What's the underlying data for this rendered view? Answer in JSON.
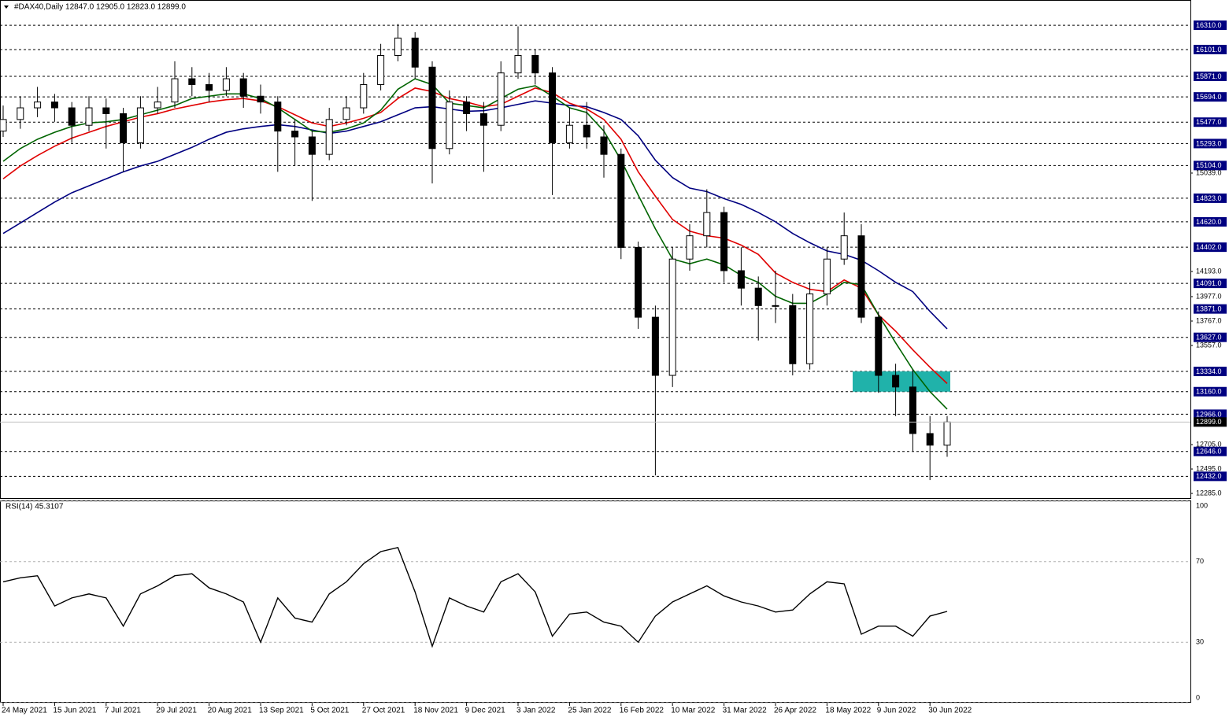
{
  "chart_data": [
    {
      "type": "candlestick",
      "title": "#DAX40,Daily  12847.0 12905.0 12823.0 12899.0",
      "categories": [
        "24 May 2021",
        null,
        null,
        "15 Jun 2021",
        null,
        null,
        "7 Jul 2021",
        null,
        null,
        "29 Jul 2021",
        null,
        null,
        "20 Aug 2021",
        null,
        null,
        "13 Sep 2021",
        null,
        null,
        "5 Oct 2021",
        null,
        null,
        "27 Oct 2021",
        null,
        null,
        "18 Nov 2021",
        null,
        null,
        "9 Dec 2021",
        null,
        null,
        "3 Jan 2022",
        null,
        null,
        "25 Jan 2022",
        null,
        null,
        "16 Feb 2022",
        null,
        null,
        "10 Mar 2022",
        null,
        null,
        "31 Mar 2022",
        null,
        null,
        "26 Apr 2022",
        null,
        null,
        "18 May 2022",
        null,
        null,
        "9 Jun 2022",
        null,
        null,
        "30 Jun 2022",
        null
      ],
      "open": [
        15400,
        15500,
        15600,
        15650,
        15600,
        15450,
        15600,
        15550,
        15300,
        15600,
        15650,
        15850,
        15800,
        15750,
        15850,
        15700,
        15650,
        15400,
        15350,
        15200,
        15500,
        15600,
        15800,
        16050,
        16200,
        15950,
        15250,
        15650,
        15550,
        15450,
        15900,
        16050,
        15900,
        15300,
        15450,
        15350,
        15200,
        14400,
        13800,
        13300,
        14300,
        14500,
        14700,
        14200,
        14050,
        13900,
        13900,
        13400,
        14000,
        14300,
        14500,
        13800,
        13300,
        13200,
        12800,
        12700
      ],
      "high": [
        15620,
        15700,
        15780,
        15720,
        15650,
        15700,
        15680,
        15600,
        15700,
        15780,
        16000,
        15950,
        15900,
        15950,
        15900,
        15800,
        15700,
        15500,
        15400,
        15600,
        15700,
        15900,
        16150,
        16320,
        16250,
        16000,
        15750,
        15700,
        15650,
        16000,
        16300,
        16100,
        15950,
        15600,
        15650,
        15450,
        15250,
        14450,
        13900,
        14400,
        14600,
        14900,
        14750,
        14400,
        14150,
        14200,
        14000,
        14100,
        14400,
        14700,
        14600,
        13850,
        13400,
        13350,
        12950,
        12950
      ],
      "low": [
        15350,
        15420,
        15520,
        15480,
        15300,
        15400,
        15250,
        15050,
        15250,
        15550,
        15600,
        15700,
        15650,
        15700,
        15600,
        15550,
        15050,
        15100,
        14800,
        15150,
        15450,
        15550,
        15750,
        16000,
        15850,
        14950,
        15200,
        15400,
        15050,
        15400,
        15850,
        15800,
        14850,
        15250,
        15250,
        15000,
        14300,
        13700,
        12440,
        13200,
        14200,
        14400,
        14100,
        13900,
        13600,
        13750,
        13300,
        13350,
        13900,
        14250,
        13750,
        13150,
        12950,
        12650,
        12400,
        12600
      ],
      "close": [
        15500,
        15600,
        15650,
        15600,
        15450,
        15600,
        15550,
        15300,
        15600,
        15650,
        15850,
        15800,
        15750,
        15850,
        15700,
        15650,
        15400,
        15350,
        15200,
        15500,
        15600,
        15800,
        16050,
        16200,
        15950,
        15250,
        15650,
        15550,
        15450,
        15900,
        16050,
        15900,
        15300,
        15450,
        15350,
        15200,
        14400,
        13800,
        13300,
        14300,
        14500,
        14700,
        14200,
        14050,
        13900,
        13900,
        13400,
        14000,
        14300,
        14500,
        13800,
        13300,
        13200,
        12800,
        12700,
        12899
      ],
      "series": [
        {
          "color": "#000080",
          "values": [
            14520,
            14610,
            14700,
            14790,
            14870,
            14930,
            14990,
            15050,
            15100,
            15140,
            15200,
            15260,
            15330,
            15390,
            15420,
            15440,
            15455,
            15440,
            15410,
            15380,
            15400,
            15440,
            15480,
            15540,
            15600,
            15610,
            15590,
            15570,
            15575,
            15600,
            15630,
            15660,
            15640,
            15620,
            15610,
            15560,
            15500,
            15360,
            15150,
            15000,
            14910,
            14880,
            14820,
            14770,
            14700,
            14620,
            14520,
            14440,
            14370,
            14340,
            14290,
            14200,
            14100,
            14020,
            13850,
            13700
          ]
        },
        {
          "color": "#e00000",
          "values": [
            14990,
            15100,
            15190,
            15270,
            15340,
            15390,
            15440,
            15480,
            15520,
            15550,
            15590,
            15620,
            15650,
            15670,
            15680,
            15660,
            15610,
            15540,
            15470,
            15440,
            15470,
            15510,
            15560,
            15680,
            15770,
            15740,
            15680,
            15650,
            15610,
            15630,
            15700,
            15770,
            15730,
            15640,
            15590,
            15500,
            15330,
            15050,
            14840,
            14640,
            14540,
            14500,
            14480,
            14420,
            14340,
            14180,
            14100,
            14040,
            14020,
            14120,
            14050,
            13820,
            13680,
            13520,
            13370,
            13230
          ]
        },
        {
          "color": "#006400",
          "values": [
            15140,
            15250,
            15330,
            15390,
            15440,
            15470,
            15480,
            15500,
            15540,
            15580,
            15620,
            15680,
            15700,
            15720,
            15720,
            15680,
            15600,
            15500,
            15400,
            15390,
            15420,
            15470,
            15580,
            15760,
            15850,
            15800,
            15640,
            15620,
            15600,
            15680,
            15760,
            15790,
            15700,
            15600,
            15560,
            15400,
            15150,
            14850,
            14560,
            14300,
            14260,
            14300,
            14250,
            14160,
            14100,
            13980,
            13920,
            13920,
            14000,
            14100,
            14080,
            13820,
            13580,
            13350,
            13160,
            13010
          ]
        }
      ],
      "ylim": [
        12245,
        16527
      ],
      "yticks": [
        {
          "value": 15039,
          "label": "15039.0"
        },
        {
          "value": 14193,
          "label": "14193.0"
        },
        {
          "value": 13977,
          "label": "13977.0"
        },
        {
          "value": 13767,
          "label": "13767.0"
        },
        {
          "value": 13557,
          "label": "13557.0"
        },
        {
          "value": 12705,
          "label": "12705.0"
        },
        {
          "value": 12495,
          "label": "12495.0"
        },
        {
          "value": 12285,
          "label": "12285.0"
        }
      ],
      "levels": [
        {
          "value": 16310,
          "label": "16310.0"
        },
        {
          "value": 16101,
          "label": "16101.0"
        },
        {
          "value": 15871,
          "label": "15871.0"
        },
        {
          "value": 15694,
          "label": "15694.0"
        },
        {
          "value": 15477,
          "label": "15477.0"
        },
        {
          "value": 15293,
          "label": "15293.0"
        },
        {
          "value": 15104,
          "label": "15104.0"
        },
        {
          "value": 14823,
          "label": "14823.0"
        },
        {
          "value": 14620,
          "label": "14620.0"
        },
        {
          "value": 14402,
          "label": "14402.0"
        },
        {
          "value": 14091,
          "label": "14091.0"
        },
        {
          "value": 13871,
          "label": "13871.0"
        },
        {
          "value": 13627,
          "label": "13627.0"
        },
        {
          "value": 13334,
          "label": "13334.0"
        },
        {
          "value": 13160,
          "label": "13160.0"
        },
        {
          "value": 12966,
          "label": "12966.0"
        },
        {
          "value": 12646,
          "label": "12646.0"
        },
        {
          "value": 12432,
          "label": "12432.0"
        }
      ],
      "last_price": {
        "value": 12899,
        "label": "12899.0"
      },
      "zone": {
        "from": 13160,
        "to": 13334,
        "color": "#20b2aa"
      }
    },
    {
      "type": "line",
      "title": "RSI(14) 45.3107",
      "color": "#000000",
      "values": [
        60,
        62,
        63,
        48,
        52,
        54,
        52,
        38,
        54,
        58,
        63,
        64,
        57,
        54,
        50,
        30,
        52,
        42,
        40,
        54,
        60,
        69,
        75,
        77,
        55,
        28,
        52,
        48,
        45,
        60,
        64,
        55,
        33,
        44,
        45,
        40,
        38,
        30,
        43,
        50,
        54,
        58,
        53,
        50,
        48,
        45,
        46,
        54,
        60,
        59,
        34,
        38,
        38,
        33,
        43,
        45.3107
      ],
      "ylim": [
        0,
        100
      ],
      "yticks": [
        100,
        70,
        30,
        0
      ]
    }
  ]
}
